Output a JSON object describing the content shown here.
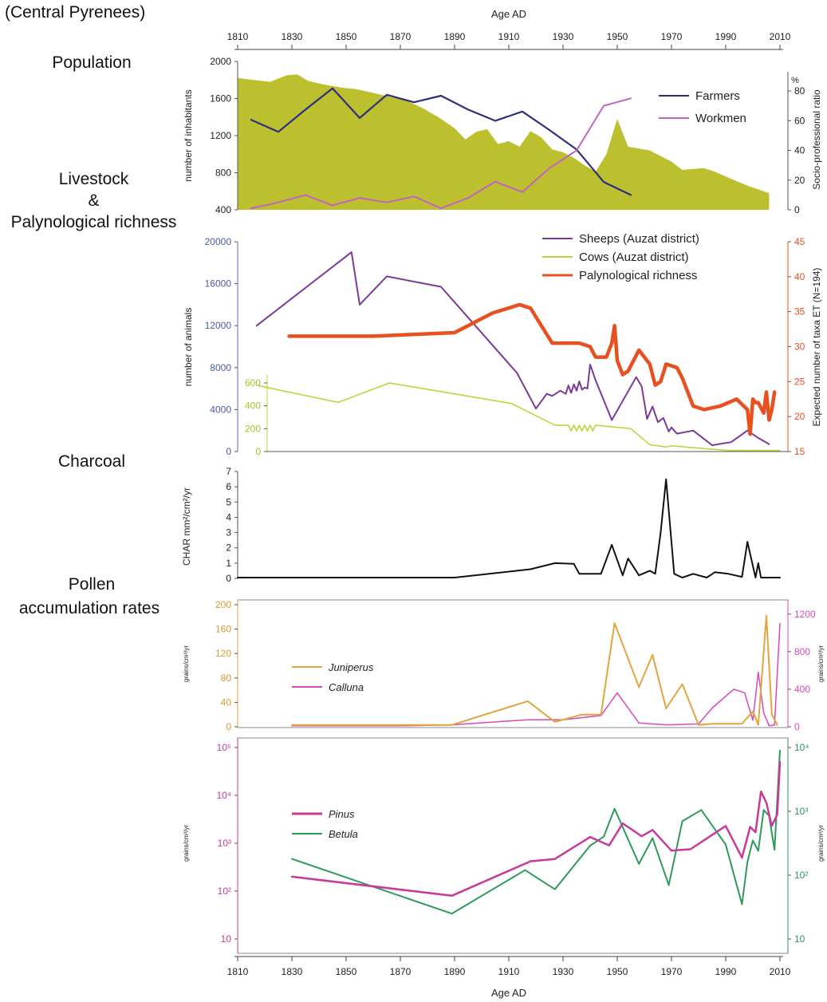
{
  "figure": {
    "region_label": "(Central Pyrenees)",
    "x_axis_label_top": "Age AD",
    "x_axis_label_bottom": "Age AD",
    "x_ticks": [
      "1810",
      "1830",
      "1850",
      "1870",
      "1890",
      "1910",
      "1930",
      "1950",
      "1970",
      "1990",
      "2010"
    ],
    "section_titles": {
      "population": "Population",
      "livestock_1": "Livestock",
      "livestock_2": "&",
      "livestock_3": "Palynological richness",
      "charcoal": "Charcoal",
      "pollen_1": "Pollen",
      "pollen_2": "accumulation rates"
    }
  },
  "chart_data": [
    {
      "type": "line",
      "panel": "population",
      "xlabel": "Age AD",
      "ylabel": "number of inhabitants",
      "ylim": [
        400,
        2000
      ],
      "yticks": [
        "400",
        "800",
        "1200",
        "1600",
        "2000"
      ],
      "y2label": "Socio-professional ratio",
      "y2unit": "%",
      "y2lim": [
        0,
        80
      ],
      "y2ticks": [
        "0",
        "20",
        "40",
        "60",
        "80"
      ],
      "legend": "top-right",
      "area": {
        "axis": "left",
        "color": "#bcc02e",
        "x": [
          1810,
          1816,
          1822,
          1828,
          1832,
          1836,
          1842,
          1848,
          1854,
          1860,
          1866,
          1872,
          1878,
          1884,
          1890,
          1894,
          1898,
          1902,
          1906,
          1910,
          1914,
          1918,
          1922,
          1926,
          1930,
          1934,
          1938,
          1942,
          1946,
          1950,
          1954,
          1958,
          1962,
          1966,
          1970,
          1974,
          1978,
          1982,
          1986,
          1990,
          1994,
          1998,
          2002,
          2006
        ],
        "y": [
          1820,
          1800,
          1780,
          1850,
          1860,
          1790,
          1750,
          1720,
          1700,
          1660,
          1620,
          1580,
          1500,
          1400,
          1280,
          1160,
          1240,
          1270,
          1110,
          1140,
          1080,
          1250,
          1180,
          1050,
          1020,
          960,
          880,
          810,
          1000,
          1380,
          1080,
          1060,
          1040,
          980,
          920,
          830,
          840,
          850,
          810,
          760,
          710,
          660,
          620,
          580
        ]
      },
      "series": [
        {
          "name": "Farmers",
          "axis": "left",
          "color": "#2e2e7e",
          "x": [
            1815,
            1825,
            1835,
            1845,
            1855,
            1865,
            1875,
            1885,
            1895,
            1905,
            1915,
            1925,
            1935,
            1945,
            1955
          ],
          "y": [
            1370,
            1240,
            1480,
            1710,
            1390,
            1640,
            1560,
            1630,
            1480,
            1360,
            1460,
            1260,
            1050,
            700,
            560
          ]
        },
        {
          "name": "Workmen",
          "axis": "right",
          "color": "#c064c0",
          "x": [
            1815,
            1825,
            1835,
            1845,
            1855,
            1865,
            1875,
            1885,
            1895,
            1905,
            1915,
            1925,
            1935,
            1945,
            1955
          ],
          "y": [
            1,
            5,
            10,
            3,
            8,
            5,
            9,
            1,
            8,
            19,
            12,
            28,
            40,
            70,
            75
          ]
        }
      ]
    },
    {
      "type": "line",
      "panel": "livestock",
      "xlabel": "Age AD",
      "ylabel": "number of animals",
      "ylim": [
        0,
        20000
      ],
      "yticks": [
        "0",
        "4000",
        "8000",
        "12000",
        "16000",
        "20000"
      ],
      "inset_yticks": [
        "0",
        "200",
        "400",
        "600"
      ],
      "inset_ylim": [
        0,
        600
      ],
      "y2label": "Expected number of taxa ET (N=194)",
      "y2lim": [
        15,
        45
      ],
      "y2ticks": [
        "15",
        "20",
        "25",
        "30",
        "35",
        "40",
        "45"
      ],
      "legend": "top-right",
      "series": [
        {
          "name": "Sheeps (Auzat district)",
          "axis": "left",
          "color": "#7a3a98",
          "x": [
            1817,
            1852,
            1855,
            1865,
            1885,
            1913,
            1920,
            1924,
            1926,
            1929,
            1931,
            1932,
            1933,
            1934,
            1935,
            1936,
            1937,
            1938,
            1939,
            1940,
            1942,
            1948,
            1957,
            1959,
            1961,
            1963,
            1965,
            1967,
            1969,
            1970,
            1972,
            1978,
            1985,
            1992,
            1998,
            2002,
            2006
          ],
          "y": [
            12000,
            19000,
            14000,
            16700,
            15700,
            7500,
            4100,
            5500,
            5300,
            5800,
            5500,
            6300,
            5600,
            6400,
            5800,
            6700,
            5900,
            6100,
            6000,
            8300,
            6800,
            3000,
            7100,
            6200,
            3100,
            4300,
            2800,
            3200,
            1900,
            2300,
            1700,
            2000,
            600,
            900,
            2000,
            1300,
            700
          ]
        },
        {
          "name": "Cows (Auzat district)",
          "axis": "inset",
          "color": "#bcd234",
          "x": [
            1817,
            1847,
            1866,
            1911,
            1927,
            1932,
            1933,
            1934,
            1935,
            1936,
            1937,
            1938,
            1939,
            1940,
            1941,
            1942,
            1955,
            1962,
            1968,
            1970,
            1980,
            1991,
            2010
          ],
          "y": [
            580,
            430,
            600,
            420,
            230,
            230,
            180,
            230,
            180,
            230,
            180,
            230,
            180,
            230,
            180,
            230,
            200,
            60,
            40,
            50,
            30,
            10,
            10
          ]
        },
        {
          "name": "Palynological richness",
          "axis": "right",
          "color": "#e85020",
          "x": [
            1829,
            1860,
            1890,
            1904,
            1914,
            1918,
            1922,
            1926,
            1930,
            1936,
            1940,
            1942,
            1946,
            1948,
            1949,
            1950,
            1952,
            1954,
            1958,
            1962,
            1964,
            1966,
            1968,
            1972,
            1974,
            1978,
            1982,
            1988,
            1994,
            1998,
            1999,
            2000,
            2001,
            2002,
            2004,
            2005,
            2006,
            2007,
            2008
          ],
          "y": [
            31.5,
            31.5,
            32,
            34.8,
            36,
            35.5,
            33,
            30.5,
            30.5,
            30.5,
            30,
            28.5,
            28.5,
            30.5,
            33,
            28,
            26,
            26.5,
            29.5,
            27.5,
            24.5,
            25,
            27.5,
            27,
            25.5,
            21.5,
            21,
            21.5,
            22.5,
            21,
            17.5,
            22.5,
            22,
            22,
            20.5,
            23.5,
            19.5,
            21,
            23.5
          ]
        }
      ]
    },
    {
      "type": "line",
      "panel": "charcoal",
      "xlabel": "Age AD",
      "ylabel": "CHAR",
      "yunit": "mm²/cm²/yr",
      "ylim": [
        0,
        7
      ],
      "yticks": [
        "0",
        "1",
        "2",
        "3",
        "4",
        "5",
        "6",
        "7"
      ],
      "series": [
        {
          "name": "",
          "axis": "left",
          "color": "#111111",
          "x": [
            1810,
            1830,
            1850,
            1890,
            1918,
            1927,
            1934,
            1936,
            1944,
            1948,
            1952,
            1954,
            1958,
            1962,
            1964,
            1966,
            1968,
            1971,
            1974,
            1978,
            1983,
            1986,
            1991,
            1996,
            1998,
            2001,
            2002,
            2003,
            2005,
            2010
          ],
          "y": [
            0.05,
            0.05,
            0.05,
            0.05,
            0.6,
            1,
            0.95,
            0.3,
            0.3,
            2.2,
            0.2,
            1.3,
            0.2,
            0.5,
            0.3,
            3,
            6.5,
            0.3,
            0.05,
            0.3,
            0.05,
            0.4,
            0.3,
            0.1,
            2.4,
            0.05,
            1,
            0.05,
            0.05,
            0.05
          ]
        }
      ]
    },
    {
      "type": "line",
      "panel": "pollen_juniperus_calluna",
      "xlabel": "Age AD",
      "ylabel": "grains/cm²/yr",
      "ylim": [
        0,
        200
      ],
      "yticks": [
        "0",
        "40",
        "80",
        "120",
        "160",
        "200"
      ],
      "y2label": "grains/cm²/yr",
      "y2lim": [
        0,
        1300
      ],
      "y2ticks": [
        "0",
        "400",
        "800",
        "1200"
      ],
      "legend": "left",
      "series": [
        {
          "name": "Juniperus",
          "axis": "left",
          "color": "#e2a43c",
          "x": [
            1830,
            1850,
            1870,
            1889,
            1917,
            1927,
            1937,
            1944,
            1949,
            1958,
            1963,
            1968,
            1974,
            1980,
            1985,
            1991,
            1996,
            2000,
            2002,
            2005,
            2007,
            2009
          ],
          "y": [
            3,
            3,
            3,
            3,
            42,
            8,
            20,
            20,
            170,
            65,
            118,
            30,
            70,
            3,
            5,
            5,
            5,
            25,
            3,
            182,
            20,
            3
          ]
        },
        {
          "name": "Calluna",
          "axis": "right",
          "color": "#d848b8",
          "x": [
            1830,
            1850,
            1870,
            1889,
            1917,
            1930,
            1944,
            1950,
            1958,
            1968,
            1980,
            1985,
            1993,
            1997,
            2000,
            2002,
            2004,
            2006,
            2008,
            2010
          ],
          "y": [
            10,
            10,
            10,
            20,
            75,
            75,
            120,
            360,
            40,
            20,
            30,
            200,
            400,
            360,
            70,
            580,
            150,
            10,
            20,
            1100
          ]
        }
      ]
    },
    {
      "type": "line",
      "panel": "pollen_pinus_betula",
      "xlabel": "Age AD",
      "ylabel": "grains/cm²/yr",
      "ylabel_scale": "log",
      "ylim": [
        10,
        100000
      ],
      "yticks": [
        "10",
        "10²",
        "10³",
        "10⁴",
        "10⁵"
      ],
      "y2label": "grains/cm²/yr",
      "y2_scale": "log",
      "y2lim": [
        10,
        10000
      ],
      "y2ticks": [
        "10",
        "10²",
        "10³",
        "10⁴"
      ],
      "legend": "left",
      "series": [
        {
          "name": "Pinus",
          "axis": "left",
          "color": "#c83a9a",
          "x": [
            1830,
            1889,
            1918,
            1927,
            1940,
            1947,
            1952,
            1959,
            1963,
            1970,
            1977,
            1990,
            1996,
            1999,
            2001,
            2003,
            2005,
            2007,
            2009,
            2010
          ],
          "y": [
            200,
            80,
            420,
            470,
            1350,
            900,
            2600,
            1400,
            1900,
            700,
            750,
            2300,
            500,
            2200,
            1700,
            12000,
            7000,
            2300,
            4000,
            50000
          ]
        },
        {
          "name": "Betula",
          "axis": "right",
          "color": "#2e9a58",
          "x": [
            1830,
            1889,
            1916,
            1927,
            1940,
            1945,
            1949,
            1958,
            1963,
            1969,
            1974,
            1981,
            1990,
            1996,
            1998,
            2000,
            2002,
            2004,
            2006,
            2008,
            2010
          ],
          "y": [
            180,
            25,
            120,
            60,
            290,
            400,
            1100,
            150,
            380,
            70,
            700,
            1050,
            300,
            35,
            160,
            350,
            240,
            1050,
            850,
            250,
            9000
          ]
        }
      ]
    }
  ]
}
